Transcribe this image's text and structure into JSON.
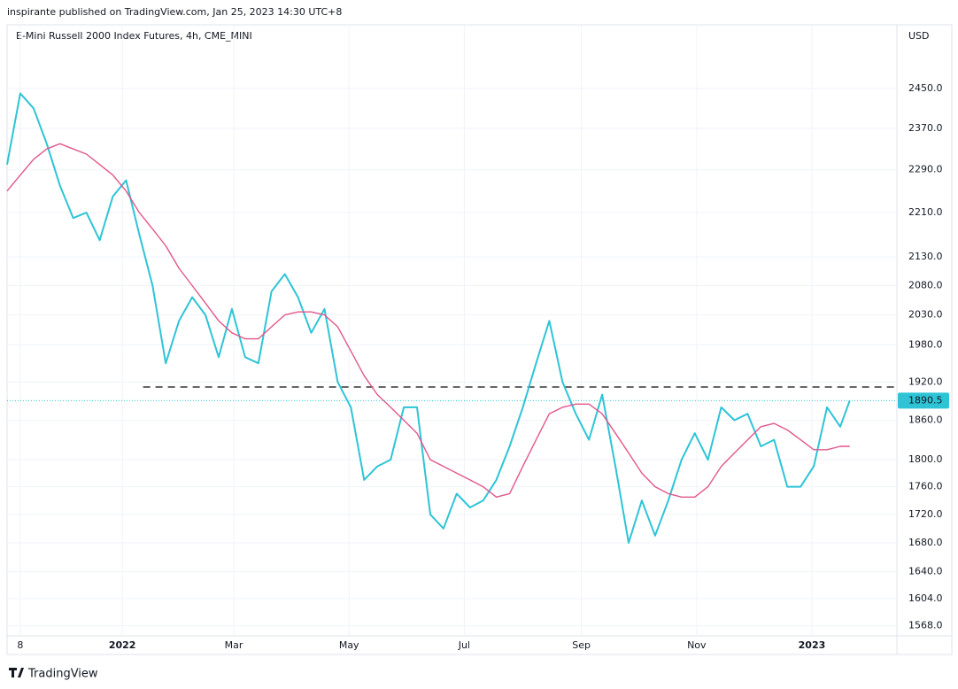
{
  "header": "inspirante published on TradingView.com, Jan 25, 2023 14:30 UTC+8",
  "footer": "TradingView",
  "chart_data": {
    "type": "line",
    "title": "E-Mini Russell 2000 Index Futures, 4h, CME_MINI",
    "ylabel": "USD",
    "log_scale": true,
    "grid": true,
    "x": [
      "2021-11-01",
      "2021-11-08",
      "2021-11-15",
      "2021-11-22",
      "2021-11-29",
      "2021-12-06",
      "2021-12-13",
      "2021-12-20",
      "2021-12-27",
      "2022-01-03",
      "2022-01-10",
      "2022-01-17",
      "2022-01-24",
      "2022-01-31",
      "2022-02-07",
      "2022-02-14",
      "2022-02-21",
      "2022-02-28",
      "2022-03-07",
      "2022-03-14",
      "2022-03-21",
      "2022-03-28",
      "2022-04-04",
      "2022-04-11",
      "2022-04-18",
      "2022-04-25",
      "2022-05-02",
      "2022-05-09",
      "2022-05-16",
      "2022-05-23",
      "2022-05-30",
      "2022-06-06",
      "2022-06-13",
      "2022-06-20",
      "2022-06-27",
      "2022-07-04",
      "2022-07-11",
      "2022-07-18",
      "2022-07-25",
      "2022-08-01",
      "2022-08-08",
      "2022-08-15",
      "2022-08-22",
      "2022-08-29",
      "2022-09-05",
      "2022-09-12",
      "2022-09-19",
      "2022-09-26",
      "2022-10-03",
      "2022-10-10",
      "2022-10-17",
      "2022-10-24",
      "2022-10-31",
      "2022-11-07",
      "2022-11-14",
      "2022-11-21",
      "2022-11-28",
      "2022-12-05",
      "2022-12-12",
      "2022-12-19",
      "2022-12-26",
      "2023-01-02",
      "2023-01-09",
      "2023-01-16",
      "2023-01-21"
    ],
    "series": [
      {
        "color": "#2ec4d6",
        "values": [
          2300,
          2440,
          2410,
          2340,
          2260,
          2200,
          2210,
          2160,
          2240,
          2270,
          2170,
          2080,
          1950,
          2020,
          2060,
          2030,
          1960,
          2040,
          1960,
          1950,
          2070,
          2100,
          2060,
          2000,
          2040,
          1920,
          1880,
          1770,
          1790,
          1800,
          1880,
          1880,
          1720,
          1700,
          1750,
          1730,
          1740,
          1770,
          1820,
          1880,
          1950,
          2020,
          1920,
          1870,
          1830,
          1900,
          1790,
          1680,
          1740,
          1690,
          1740,
          1800,
          1840,
          1800,
          1880,
          1860,
          1870,
          1820,
          1830,
          1760,
          1760,
          1790,
          1880,
          1850,
          1890.5
        ]
      },
      {
        "color": "#e2578a",
        "values": [
          2250,
          2280,
          2310,
          2330,
          2340,
          2330,
          2320,
          2300,
          2280,
          2250,
          2210,
          2180,
          2150,
          2110,
          2080,
          2050,
          2020,
          2000,
          1990,
          1990,
          2010,
          2030,
          2035,
          2035,
          2030,
          2010,
          1970,
          1930,
          1900,
          1880,
          1860,
          1840,
          1800,
          1790,
          1780,
          1770,
          1760,
          1745,
          1750,
          1790,
          1830,
          1870,
          1880,
          1885,
          1885,
          1870,
          1840,
          1810,
          1780,
          1760,
          1750,
          1745,
          1745,
          1760,
          1790,
          1810,
          1830,
          1850,
          1855,
          1845,
          1830,
          1815,
          1815,
          1820,
          1820
        ]
      }
    ],
    "reference_line": {
      "value": 1912,
      "start": "2022-01-12",
      "color": "#333333"
    },
    "xlim": [
      "2021-11-01",
      "2023-02-15"
    ],
    "xticks": [
      {
        "value": "2021-11-08",
        "label": "8"
      },
      {
        "value": "2022-01-01",
        "label": "2022"
      },
      {
        "value": "2022-03-01",
        "label": "Mar"
      },
      {
        "value": "2022-05-01",
        "label": "May"
      },
      {
        "value": "2022-07-01",
        "label": "Jul"
      },
      {
        "value": "2022-09-01",
        "label": "Sep"
      },
      {
        "value": "2022-11-01",
        "label": "Nov"
      },
      {
        "value": "2023-01-01",
        "label": "2023"
      }
    ],
    "ylim": [
      1555,
      2583
    ],
    "yticks": [
      {
        "value": 2450,
        "label": "2450.0"
      },
      {
        "value": 2370,
        "label": "2370.0"
      },
      {
        "value": 2290,
        "label": "2290.0"
      },
      {
        "value": 2210,
        "label": "2210.0"
      },
      {
        "value": 2130,
        "label": "2130.0"
      },
      {
        "value": 2080,
        "label": "2080.0"
      },
      {
        "value": 2030,
        "label": "2030.0"
      },
      {
        "value": 1980,
        "label": "1980.0"
      },
      {
        "value": 1920,
        "label": "1920.0"
      },
      {
        "value": 1860,
        "label": "1860.0"
      },
      {
        "value": 1800,
        "label": "1800.0"
      },
      {
        "value": 1760,
        "label": "1760.0"
      },
      {
        "value": 1720,
        "label": "1720.0"
      },
      {
        "value": 1680,
        "label": "1680.0"
      },
      {
        "value": 1640,
        "label": "1640.0"
      },
      {
        "value": 1604,
        "label": "1604.0"
      },
      {
        "value": 1568,
        "label": "1568.0"
      }
    ]
  }
}
